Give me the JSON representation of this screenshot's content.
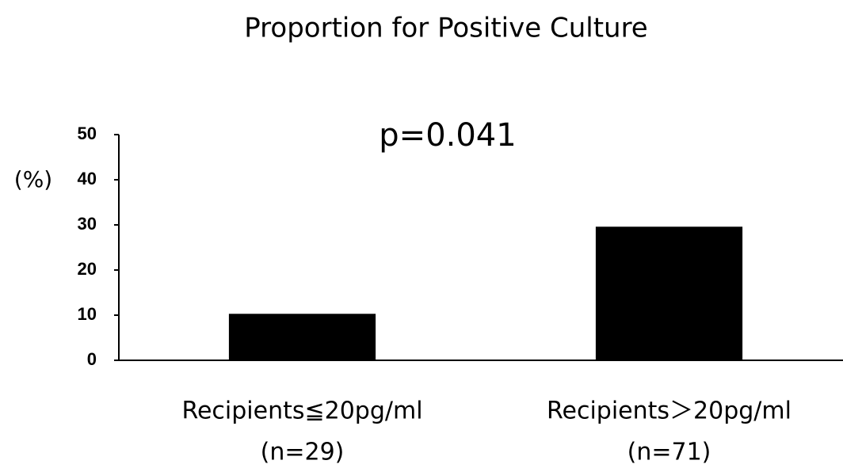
{
  "chart_data": {
    "type": "bar",
    "title": "Proportion for Positive Culture",
    "ylabel": "(%)",
    "annotation": "p=0.041",
    "categories": [
      [
        "Recipients≦20pg/ml",
        "(n=29)"
      ],
      [
        "Recipients＞20pg/ml",
        "(n=71)"
      ]
    ],
    "values": [
      10.3,
      29.6
    ],
    "color": "#000000",
    "ylim": [
      0,
      50
    ],
    "yticks": [
      0,
      10,
      20,
      30,
      40,
      50
    ],
    "grid": false
  }
}
